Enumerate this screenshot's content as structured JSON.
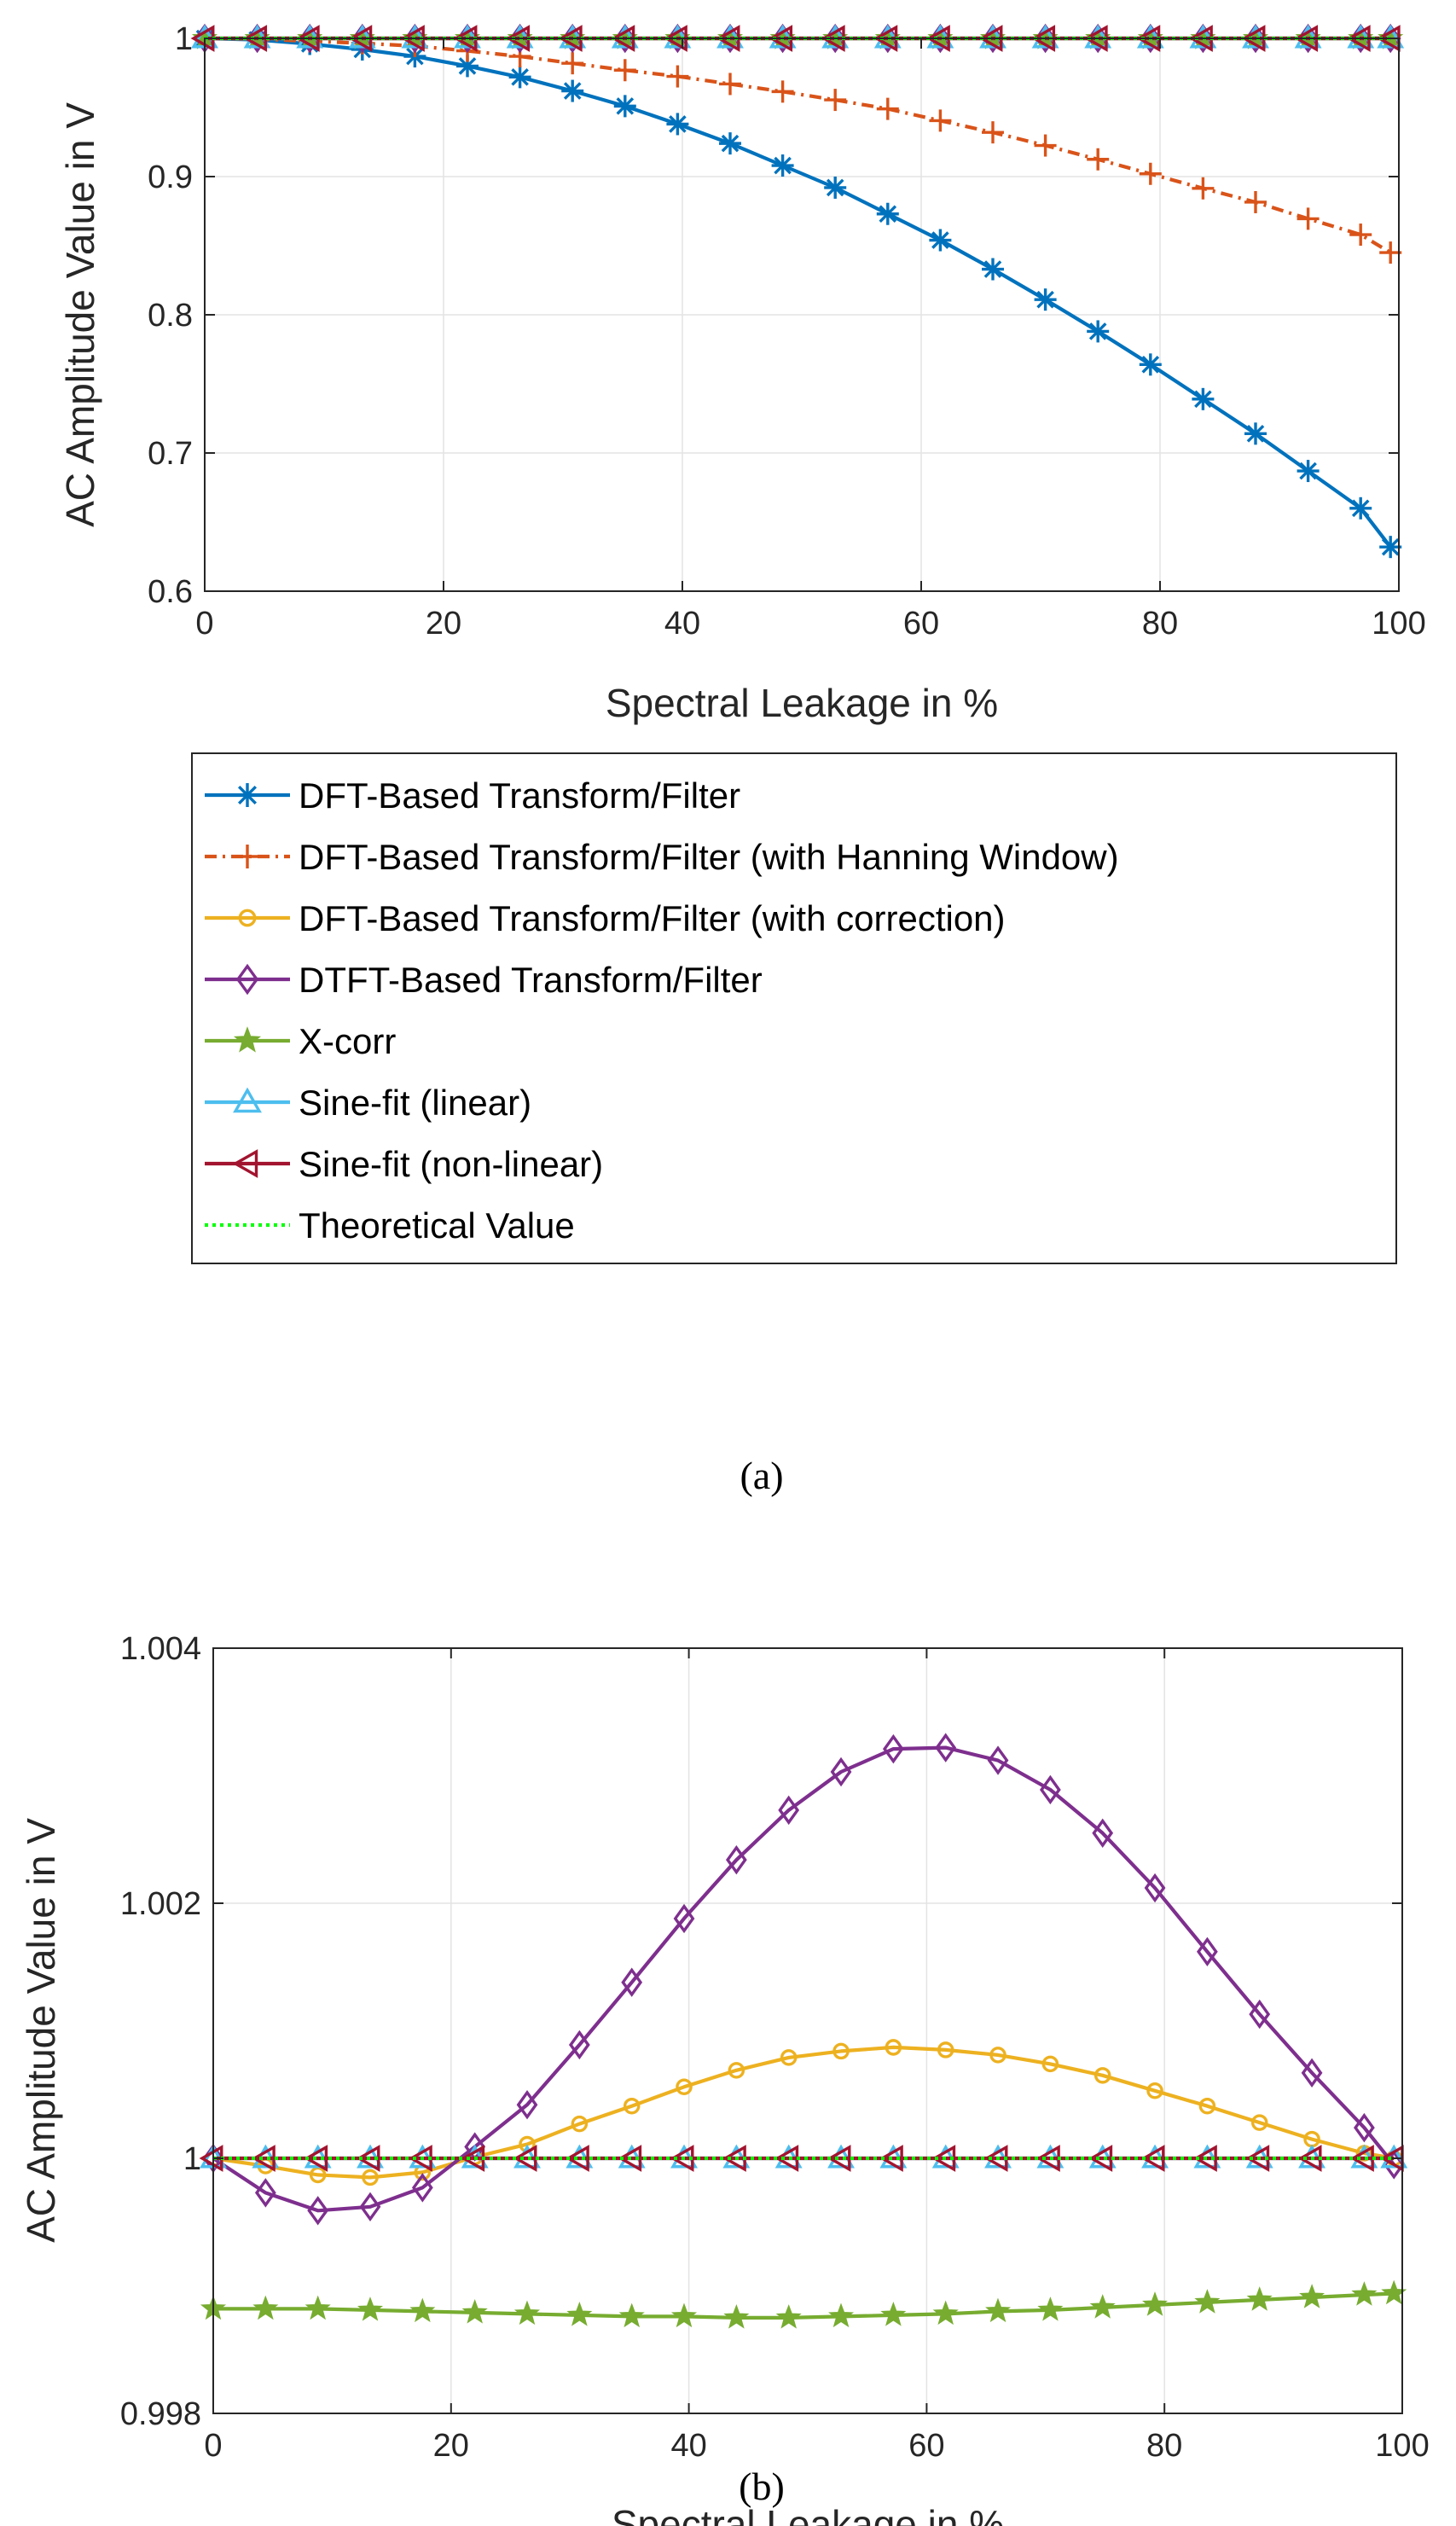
{
  "panels": [
    {
      "caption": "(a)",
      "xlabel": "Spectral Leakage in %",
      "ylabel": "AC Amplitude Value in V",
      "xticks": [
        "0",
        "20",
        "40",
        "60",
        "80",
        "100"
      ],
      "yticks": [
        "0.6",
        "0.7",
        "0.8",
        "0.9",
        "1"
      ]
    },
    {
      "caption": "(b)",
      "xlabel": "Spectral Leakage in %",
      "ylabel": "AC Amplitude Value in V",
      "xticks": [
        "0",
        "20",
        "40",
        "60",
        "80",
        "100"
      ],
      "yticks": [
        "0.998",
        "1",
        "1.002",
        "1.004"
      ]
    }
  ],
  "legend": {
    "entries": [
      {
        "label": "DFT-Based Transform/Filter",
        "color": "#0072BD",
        "marker": "asterisk",
        "dash": "solid"
      },
      {
        "label": "DFT-Based Transform/Filter (with Hanning Window)",
        "color": "#D95319",
        "marker": "plus",
        "dash": "dashdot"
      },
      {
        "label": "DFT-Based Transform/Filter (with correction)",
        "color": "#EDB120",
        "marker": "circle",
        "dash": "solid"
      },
      {
        "label": "DTFT-Based Transform/Filter",
        "color": "#7E2F8E",
        "marker": "diamond",
        "dash": "solid"
      },
      {
        "label": "X-corr",
        "color": "#77AC30",
        "marker": "star",
        "dash": "solid"
      },
      {
        "label": "Sine-fit (linear)",
        "color": "#4DBEEE",
        "marker": "triangle-up",
        "dash": "solid"
      },
      {
        "label": "Sine-fit (non-linear)",
        "color": "#A2142F",
        "marker": "triangle-left",
        "dash": "solid"
      },
      {
        "label": "Theoretical Value",
        "color": "#00FF00",
        "marker": "none",
        "dash": "dotted"
      }
    ]
  },
  "chart_data": [
    {
      "type": "line",
      "xlabel": "Spectral Leakage in %",
      "ylabel": "AC Amplitude Value in V",
      "xlim": [
        0,
        100
      ],
      "ylim": [
        0.6,
        1.0
      ],
      "grid": true,
      "x": [
        0,
        4.4,
        8.8,
        13.2,
        17.6,
        22,
        26.4,
        30.8,
        35.2,
        39.6,
        44,
        48.4,
        52.8,
        57.2,
        61.6,
        66,
        70.4,
        74.8,
        79.2,
        83.6,
        88,
        92.4,
        96.8,
        99.3
      ],
      "series": [
        {
          "name": "DFT-Based Transform/Filter",
          "values": [
            1.0,
            0.999,
            0.996,
            0.992,
            0.987,
            0.98,
            0.972,
            0.962,
            0.951,
            0.938,
            0.924,
            0.908,
            0.892,
            0.873,
            0.854,
            0.833,
            0.811,
            0.788,
            0.764,
            0.739,
            0.714,
            0.687,
            0.66,
            0.632
          ]
        },
        {
          "name": "DFT-Based Transform/Filter (with Hanning Window)",
          "values": [
            1.0,
            0.9995,
            0.998,
            0.9965,
            0.9945,
            0.991,
            0.987,
            0.982,
            0.977,
            0.9725,
            0.967,
            0.9615,
            0.9555,
            0.949,
            0.9405,
            0.932,
            0.9225,
            0.9125,
            0.902,
            0.8915,
            0.8815,
            0.8695,
            0.858,
            0.845
          ]
        },
        {
          "name": "DFT-Based Transform/Filter (with correction)",
          "values": [
            1.0,
            1.0,
            1.0,
            1.0,
            1.0,
            1.0,
            1.0,
            1.0,
            1.0,
            1.0,
            1.0,
            1.0,
            1.0,
            1.0,
            1.0,
            1.0,
            1.0,
            1.0,
            1.0,
            1.0,
            1.0,
            1.0,
            1.0,
            1.0
          ]
        },
        {
          "name": "DTFT-Based Transform/Filter",
          "values": [
            1.0,
            1.0,
            1.0,
            1.0,
            1.0,
            1.0,
            1.0,
            1.0,
            1.0,
            1.0,
            1.0,
            1.0,
            1.0,
            1.0,
            1.0,
            1.0,
            1.0,
            1.0,
            1.0,
            1.0,
            1.0,
            1.0,
            1.0,
            1.0
          ]
        },
        {
          "name": "X-corr",
          "values": [
            1.0,
            1.0,
            1.0,
            1.0,
            1.0,
            1.0,
            1.0,
            1.0,
            1.0,
            1.0,
            1.0,
            1.0,
            1.0,
            1.0,
            1.0,
            1.0,
            1.0,
            1.0,
            1.0,
            1.0,
            1.0,
            1.0,
            1.0,
            1.0
          ]
        },
        {
          "name": "Sine-fit (linear)",
          "values": [
            1.0,
            1.0,
            1.0,
            1.0,
            1.0,
            1.0,
            1.0,
            1.0,
            1.0,
            1.0,
            1.0,
            1.0,
            1.0,
            1.0,
            1.0,
            1.0,
            1.0,
            1.0,
            1.0,
            1.0,
            1.0,
            1.0,
            1.0,
            1.0
          ]
        },
        {
          "name": "Sine-fit (non-linear)",
          "values": [
            1.0,
            1.0,
            1.0,
            1.0,
            1.0,
            1.0,
            1.0,
            1.0,
            1.0,
            1.0,
            1.0,
            1.0,
            1.0,
            1.0,
            1.0,
            1.0,
            1.0,
            1.0,
            1.0,
            1.0,
            1.0,
            1.0,
            1.0,
            1.0
          ]
        },
        {
          "name": "Theoretical Value",
          "values": [
            1.0,
            1.0,
            1.0,
            1.0,
            1.0,
            1.0,
            1.0,
            1.0,
            1.0,
            1.0,
            1.0,
            1.0,
            1.0,
            1.0,
            1.0,
            1.0,
            1.0,
            1.0,
            1.0,
            1.0,
            1.0,
            1.0,
            1.0,
            1.0
          ]
        }
      ]
    },
    {
      "type": "line",
      "xlabel": "Spectral Leakage in %",
      "ylabel": "AC Amplitude Value in V",
      "xlim": [
        0,
        100
      ],
      "ylim": [
        0.998,
        1.004
      ],
      "grid": true,
      "x": [
        0,
        4.4,
        8.8,
        13.2,
        17.6,
        22,
        26.4,
        30.8,
        35.2,
        39.6,
        44,
        48.4,
        52.8,
        57.2,
        61.6,
        66,
        70.4,
        74.8,
        79.2,
        83.6,
        88,
        92.4,
        96.8,
        99.3
      ],
      "series": [
        {
          "name": "DFT-Based Transform/Filter (with correction)",
          "values": [
            1.0,
            0.99994,
            0.99987,
            0.99985,
            0.99989,
            1.00001,
            1.00011,
            1.00027,
            1.00041,
            1.00056,
            1.00069,
            1.00079,
            1.00084,
            1.00087,
            1.00085,
            1.00081,
            1.00074,
            1.00065,
            1.00053,
            1.00041,
            1.00028,
            1.00015,
            1.00004,
            1.0
          ]
        },
        {
          "name": "DTFT-Based Transform/Filter",
          "values": [
            1.0,
            0.99973,
            0.99959,
            0.99962,
            0.99977,
            1.00009,
            1.00042,
            1.00089,
            1.00138,
            1.00188,
            1.00234,
            1.00273,
            1.00303,
            1.00321,
            1.00322,
            1.00312,
            1.00289,
            1.00255,
            1.00212,
            1.00162,
            1.00113,
            1.00067,
            1.00024,
            0.99995
          ]
        },
        {
          "name": "X-corr",
          "values": [
            0.99882,
            0.99882,
            0.99882,
            0.99881,
            0.9988,
            0.99879,
            0.99878,
            0.99877,
            0.99876,
            0.99876,
            0.99875,
            0.99875,
            0.99876,
            0.99877,
            0.99878,
            0.9988,
            0.99881,
            0.99883,
            0.99885,
            0.99887,
            0.99889,
            0.99891,
            0.99893,
            0.99894
          ]
        },
        {
          "name": "Sine-fit (linear)",
          "values": [
            1.0,
            1.0,
            1.0,
            1.0,
            1.0,
            1.0,
            1.0,
            1.0,
            1.0,
            1.0,
            1.0,
            1.0,
            1.0,
            1.0,
            1.0,
            1.0,
            1.0,
            1.0,
            1.0,
            1.0,
            1.0,
            1.0,
            1.0,
            1.0
          ]
        },
        {
          "name": "Sine-fit (non-linear)",
          "values": [
            1.0,
            1.0,
            1.0,
            1.0,
            1.0,
            1.0,
            1.0,
            1.0,
            1.0,
            1.0,
            1.0,
            1.0,
            1.0,
            1.0,
            1.0,
            1.0,
            1.0,
            1.0,
            1.0,
            1.0,
            1.0,
            1.0,
            1.0,
            1.0
          ]
        },
        {
          "name": "Theoretical Value",
          "values": [
            1.0,
            1.0,
            1.0,
            1.0,
            1.0,
            1.0,
            1.0,
            1.0,
            1.0,
            1.0,
            1.0,
            1.0,
            1.0,
            1.0,
            1.0,
            1.0,
            1.0,
            1.0,
            1.0,
            1.0,
            1.0,
            1.0,
            1.0,
            1.0
          ]
        }
      ]
    }
  ]
}
